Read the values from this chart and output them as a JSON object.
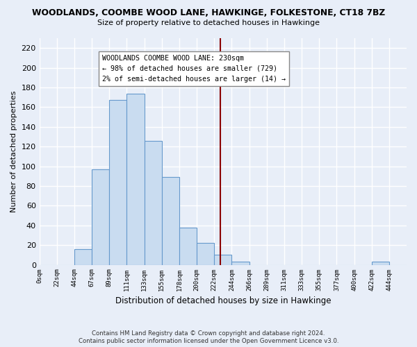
{
  "title": "WOODLANDS, COOMBE WOOD LANE, HAWKINGE, FOLKESTONE, CT18 7BZ",
  "subtitle": "Size of property relative to detached houses in Hawkinge",
  "xlabel": "Distribution of detached houses by size in Hawkinge",
  "ylabel": "Number of detached properties",
  "bar_color": "#c9dcf0",
  "bar_edge_color": "#6699cc",
  "bin_labels": [
    "0sqm",
    "22sqm",
    "44sqm",
    "67sqm",
    "89sqm",
    "111sqm",
    "133sqm",
    "155sqm",
    "178sqm",
    "200sqm",
    "222sqm",
    "244sqm",
    "266sqm",
    "289sqm",
    "311sqm",
    "333sqm",
    "355sqm",
    "377sqm",
    "400sqm",
    "422sqm",
    "444sqm"
  ],
  "bar_heights": [
    0,
    0,
    16,
    97,
    167,
    174,
    126,
    89,
    38,
    22,
    10,
    3,
    0,
    0,
    0,
    0,
    0,
    0,
    0,
    3,
    0
  ],
  "vline_x": 10.36,
  "annotation_text_lines": [
    "WOODLANDS COOMBE WOOD LANE: 230sqm",
    "← 98% of detached houses are smaller (729)",
    "2% of semi-detached houses are larger (14) →"
  ],
  "ylim": [
    0,
    230
  ],
  "yticks": [
    0,
    20,
    40,
    60,
    80,
    100,
    120,
    140,
    160,
    180,
    200,
    220
  ],
  "footnote1": "Contains HM Land Registry data © Crown copyright and database right 2024.",
  "footnote2": "Contains public sector information licensed under the Open Government Licence v3.0.",
  "vline_color": "#8b0000",
  "annotation_box_facecolor": "#ffffff",
  "annotation_box_edgecolor": "#888888",
  "background_color": "#e8eef8"
}
